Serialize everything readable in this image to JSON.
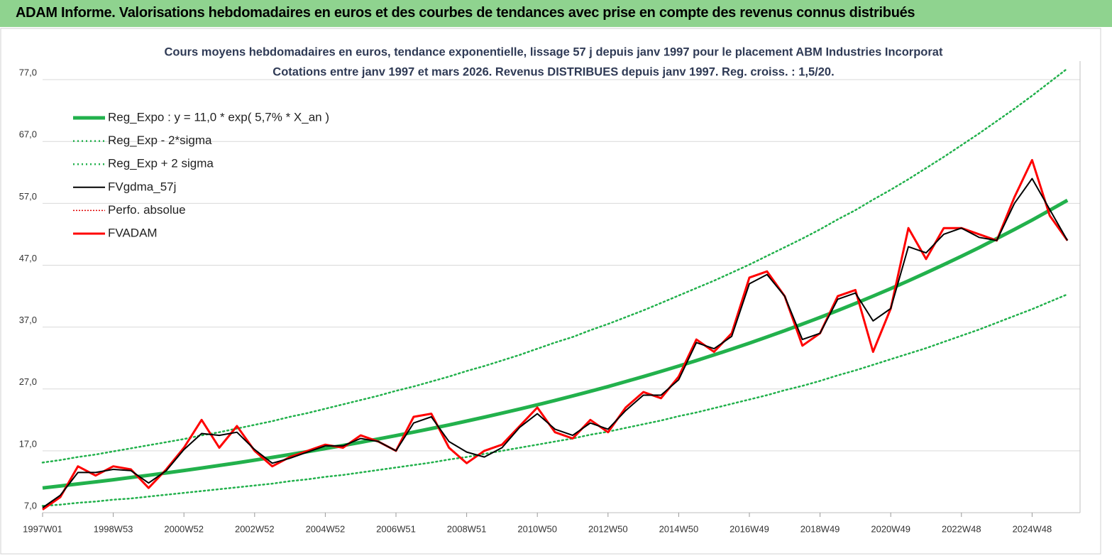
{
  "header": {
    "title": "ADAM Informe. Valorisations hebdomadaires en euros et des courbes de tendances avec prise en compte des revenus connus distribués"
  },
  "chart_data": {
    "type": "line",
    "title": "Cours moyens hebdomadaires en euros, tendance exponentielle, lissage 57 j depuis janv 1997  pour le placement ABM Industries Incorporat",
    "subtitle": "Cotations entre janv 1997  et mars 2026. Revenus DISTRIBUES depuis janv 1997. Reg. croiss. : 1,5/20.",
    "categories": [
      "1997W01",
      null,
      null,
      null,
      "1998W53",
      null,
      null,
      null,
      "2000W52",
      null,
      null,
      null,
      "2002W52",
      null,
      null,
      null,
      "2004W52",
      null,
      null,
      null,
      "2006W51",
      null,
      null,
      null,
      "2008W51",
      null,
      null,
      null,
      "2010W50",
      null,
      null,
      null,
      "2012W50",
      null,
      null,
      null,
      "2014W50",
      null,
      null,
      null,
      "2016W49",
      null,
      null,
      null,
      "2018W49",
      null,
      null,
      null,
      "2020W49",
      null,
      null,
      null,
      "2022W48",
      null,
      null,
      null,
      "2024W48",
      null,
      null
    ],
    "ylim": [
      7,
      80
    ],
    "yticks": [
      {
        "value": 7,
        "label": "7,0"
      },
      {
        "value": 17,
        "label": "17,0"
      },
      {
        "value": 27,
        "label": "27,0"
      },
      {
        "value": 37,
        "label": "37,0"
      },
      {
        "value": 47,
        "label": "47,0"
      },
      {
        "value": 57,
        "label": "57,0"
      },
      {
        "value": 67,
        "label": "67,0"
      },
      {
        "value": 77,
        "label": "77,0"
      }
    ],
    "grid": true,
    "legend": "top-left",
    "series": [
      {
        "name": "Reg_Expo : y = 11,0 * exp( 5,7% *  X_an )",
        "color": "#22b14c",
        "width": 5,
        "style": "solid",
        "values": [
          11.0,
          11.32,
          11.65,
          11.98,
          12.33,
          12.69,
          13.05,
          13.43,
          13.82,
          14.22,
          14.63,
          15.05,
          15.49,
          15.94,
          16.4,
          16.87,
          17.36,
          17.86,
          18.38,
          18.91,
          19.46,
          20.02,
          20.6,
          21.19,
          21.81,
          22.44,
          23.09,
          23.75,
          24.44,
          25.15,
          25.87,
          26.62,
          27.39,
          28.19,
          29.0,
          29.84,
          30.7,
          31.59,
          32.5,
          33.44,
          34.41,
          35.41,
          36.43,
          37.48,
          38.57,
          39.68,
          40.83,
          42.01,
          43.23,
          44.48,
          45.77,
          47.09,
          48.45,
          49.85,
          51.3,
          52.78,
          54.3,
          55.88,
          57.49
        ]
      },
      {
        "name": "Reg_Exp - 2*sigma",
        "color": "#22b14c",
        "width": 2.5,
        "style": "dotted",
        "values": [
          8.1,
          8.3,
          8.6,
          8.8,
          9.1,
          9.3,
          9.6,
          9.9,
          10.2,
          10.5,
          10.8,
          11.1,
          11.4,
          11.7,
          12.1,
          12.4,
          12.8,
          13.1,
          13.5,
          13.9,
          14.3,
          14.7,
          15.1,
          15.6,
          16.0,
          16.5,
          17.0,
          17.5,
          18.0,
          18.5,
          19.0,
          19.6,
          20.1,
          20.7,
          21.3,
          21.9,
          22.6,
          23.2,
          23.9,
          24.6,
          25.3,
          26.0,
          26.8,
          27.5,
          28.3,
          29.2,
          30.0,
          30.9,
          31.8,
          32.7,
          33.6,
          34.6,
          35.6,
          36.6,
          37.7,
          38.8,
          39.9,
          41.1,
          42.3
        ]
      },
      {
        "name": "Reg_Exp + 2 sigma",
        "color": "#22b14c",
        "width": 2.5,
        "style": "dotted",
        "values": [
          15.1,
          15.5,
          16.0,
          16.4,
          16.9,
          17.4,
          17.9,
          18.4,
          18.9,
          19.5,
          20.0,
          20.6,
          21.2,
          21.8,
          22.5,
          23.1,
          23.8,
          24.5,
          25.2,
          25.9,
          26.7,
          27.4,
          28.2,
          29.0,
          29.9,
          30.7,
          31.6,
          32.5,
          33.5,
          34.5,
          35.4,
          36.5,
          37.5,
          38.6,
          39.7,
          40.9,
          42.1,
          43.3,
          44.5,
          45.8,
          47.1,
          48.5,
          49.9,
          51.3,
          52.8,
          54.4,
          55.9,
          57.6,
          59.2,
          60.9,
          62.7,
          64.5,
          66.4,
          68.3,
          70.3,
          72.3,
          74.4,
          76.6,
          78.8
        ]
      },
      {
        "name": "FVgdma_57j",
        "color": "#000000",
        "width": 2,
        "style": "solid",
        "values": [
          7.8,
          9.8,
          13.5,
          13.5,
          14,
          13.8,
          11.8,
          13.8,
          17.2,
          19.8,
          19.5,
          20,
          17.2,
          15,
          15.8,
          16.8,
          17.8,
          17.8,
          19,
          18.5,
          17,
          21.5,
          22.5,
          18.5,
          16.8,
          16,
          17.5,
          20.8,
          23,
          20.5,
          19.5,
          21.5,
          20.5,
          23.5,
          26,
          26,
          28.5,
          34.5,
          33.5,
          35.5,
          44,
          45.5,
          42,
          35,
          36,
          41.5,
          42.5,
          38,
          40,
          50,
          49,
          52,
          53,
          51.5,
          51,
          57,
          61,
          56,
          51
        ]
      },
      {
        "name": "Perfo. absolue",
        "color": "#e00000",
        "width": 1.5,
        "style": "dotted",
        "values": [
          null,
          null,
          null,
          null,
          null,
          null,
          null,
          null,
          null,
          null,
          null,
          null,
          null,
          null,
          null,
          null,
          null,
          null,
          null,
          null,
          null,
          null,
          null,
          null,
          null,
          null,
          null,
          null,
          null,
          null,
          null,
          null,
          null,
          null,
          null,
          null,
          null,
          null,
          null,
          null,
          null,
          null,
          null,
          null,
          null,
          null,
          null,
          null,
          null,
          null,
          null,
          null,
          null,
          null,
          null,
          null,
          null,
          null,
          null
        ]
      },
      {
        "name": "FVADAM",
        "color": "#ff0000",
        "width": 3,
        "style": "solid",
        "values": [
          7.5,
          9.5,
          14.5,
          13,
          14.5,
          14,
          11,
          14,
          17.5,
          22,
          17.5,
          21,
          17,
          14.5,
          16,
          17,
          18,
          17.5,
          19.5,
          18.5,
          17,
          22.5,
          23,
          17.5,
          15,
          17,
          18,
          21,
          24,
          20,
          19,
          22,
          20,
          24,
          26.5,
          25.5,
          29,
          35,
          33,
          36,
          45,
          46,
          42,
          34,
          36,
          42,
          43,
          33,
          40,
          53,
          48,
          53,
          53,
          52,
          51,
          58,
          64,
          55,
          51
        ]
      }
    ]
  }
}
